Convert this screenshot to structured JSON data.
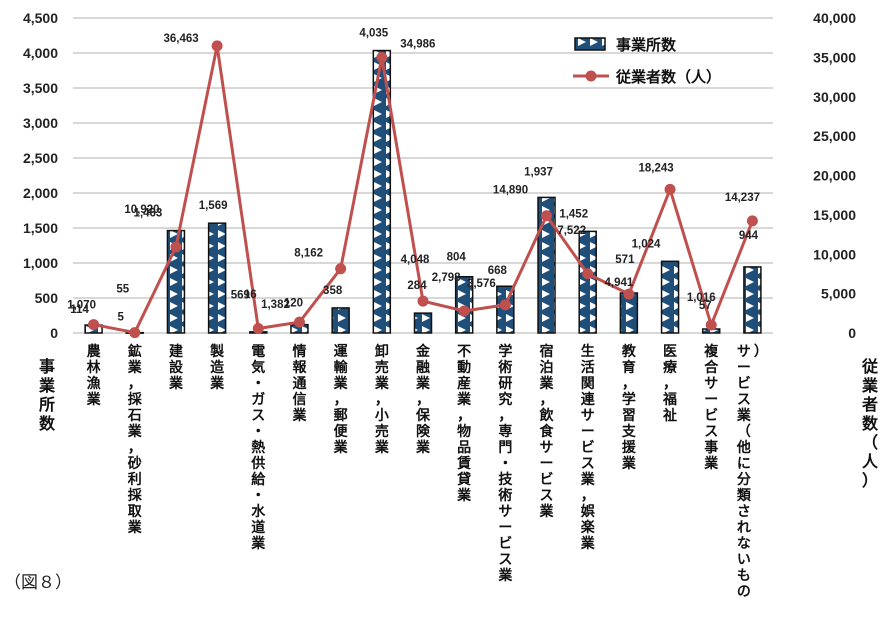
{
  "chart_data": {
    "type": "bar",
    "categories": [
      "農林漁業",
      "鉱業，採石業，砂利採取業",
      "建設業",
      "製造業",
      "電気・ガス・熱供給・水道業",
      "情報通信業",
      "運輸業，郵便業",
      "卸売業，小売業",
      "金融業，保険業",
      "不動産業，物品賃貸業",
      "学術研究，専門・技術サービス業",
      "宿泊業，飲食サービス業",
      "生活関連サービス業，娯楽業",
      "教育，学習支援業",
      "医療，福祉",
      "複合サービス事業",
      "サービス業（他に分類されないもの）"
    ],
    "series": [
      {
        "name": "事業所数",
        "axis": "left",
        "values": [
          114,
          5,
          1463,
          1569,
          16,
          120,
          358,
          4035,
          284,
          804,
          668,
          1937,
          1452,
          571,
          1024,
          57,
          944
        ],
        "labels": [
          "114",
          "5",
          "1,463",
          "1,569",
          "16",
          "120",
          "358",
          "4,035",
          "284",
          "804",
          "668",
          "1,937",
          "1,452",
          "571",
          "1,024",
          "57",
          "944"
        ]
      },
      {
        "name": "従業者数（人）",
        "axis": "right",
        "values": [
          1070,
          55,
          10920,
          36463,
          569,
          1382,
          8162,
          34986,
          4048,
          2798,
          3576,
          14890,
          7522,
          4941,
          18243,
          1016,
          14237
        ],
        "labels": [
          "1,070",
          "55",
          "10,920",
          "36,463",
          "569",
          "1,382",
          "8,162",
          "34,986",
          "4,048",
          "2,798",
          "3,576",
          "14,890",
          "7,522",
          "4,941",
          "18,243",
          "1,016",
          "14,237"
        ]
      }
    ],
    "ylim_left": [
      0,
      4500
    ],
    "ylim_right": [
      0,
      40000
    ],
    "yticks_left": [
      "0",
      "500",
      "1,000",
      "1,500",
      "2,000",
      "2,500",
      "3,000",
      "3,500",
      "4,000",
      "4,500"
    ],
    "yticks_right": [
      "0",
      "5,000",
      "10,000",
      "15,000",
      "20,000",
      "25,000",
      "30,000",
      "35,000",
      "40,000"
    ],
    "ylabel_left": "事業所数",
    "ylabel_right": "従業者数（人）",
    "grid": true,
    "legend_position": "top-right"
  },
  "figure_label": "（図８）",
  "colors": {
    "bar_fill": "#1f4e79",
    "bar_pattern_light": "#ffffff",
    "bar_edge": "#111111",
    "line": "#c0504d",
    "grid": "#b0b0b0"
  }
}
